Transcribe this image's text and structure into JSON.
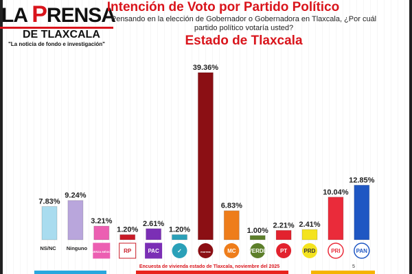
{
  "header": {
    "logo_main": "LA PRENSA",
    "logo_sub": "DE TLAXCALA",
    "logo_tag": "\"La noticia de fondo e investigación\"",
    "title": "Intención de Voto por Partido Político",
    "question": "Pensando en la elección de Gobernador o Gobernadora en Tlaxcala, ¿Por cuál partido político votaría usted?",
    "subtitle": "Estado de Tlaxcala"
  },
  "footer": {
    "source": "Encuesta de vivienda estado de Tlaxcala, noviembre del 2025",
    "page": "5"
  },
  "chart_data": {
    "type": "bar",
    "title": "Intención de Voto por Partido Político",
    "unit": "%",
    "categories": [
      "NS/NC",
      "Ninguno",
      "Fuerza México",
      "RP",
      "PAC",
      "Partido (logo verde azulado)",
      "Morena",
      "MC",
      "Verde",
      "PT",
      "PRD",
      "PRI",
      "PAN"
    ],
    "axis_labels": [
      "NS/NC",
      "Ninguno"
    ],
    "logo_texts": [
      "",
      "",
      "FUERZA MÉXICO",
      "RP",
      "PAC",
      "✓",
      "morena",
      "MC",
      "VERDE",
      "PT",
      "PRD",
      "PRI",
      "PAN"
    ],
    "values": [
      7.83,
      9.24,
      3.21,
      1.2,
      2.61,
      1.2,
      39.36,
      6.83,
      1.0,
      2.21,
      2.41,
      10.04,
      12.85
    ],
    "data_labels": [
      "7.83%",
      "9.24%",
      "3.21%",
      "1.20%",
      "2.61%",
      "1.20%",
      "39.36%",
      "6.83%",
      "1.00%",
      "2.21%",
      "2.41%",
      "10.04%",
      "12.85%"
    ],
    "colors": [
      "#a9dcef",
      "#b9a6dc",
      "#ec5fb2",
      "#c81a26",
      "#7b2fb5",
      "#2aa0b8",
      "#8b0f14",
      "#ee7d1b",
      "#5d7f2b",
      "#e2222e",
      "#f4e320",
      "#ea2b3a",
      "#1f57c3"
    ],
    "ylim": [
      0,
      40
    ],
    "grid": false,
    "legend": "none"
  }
}
